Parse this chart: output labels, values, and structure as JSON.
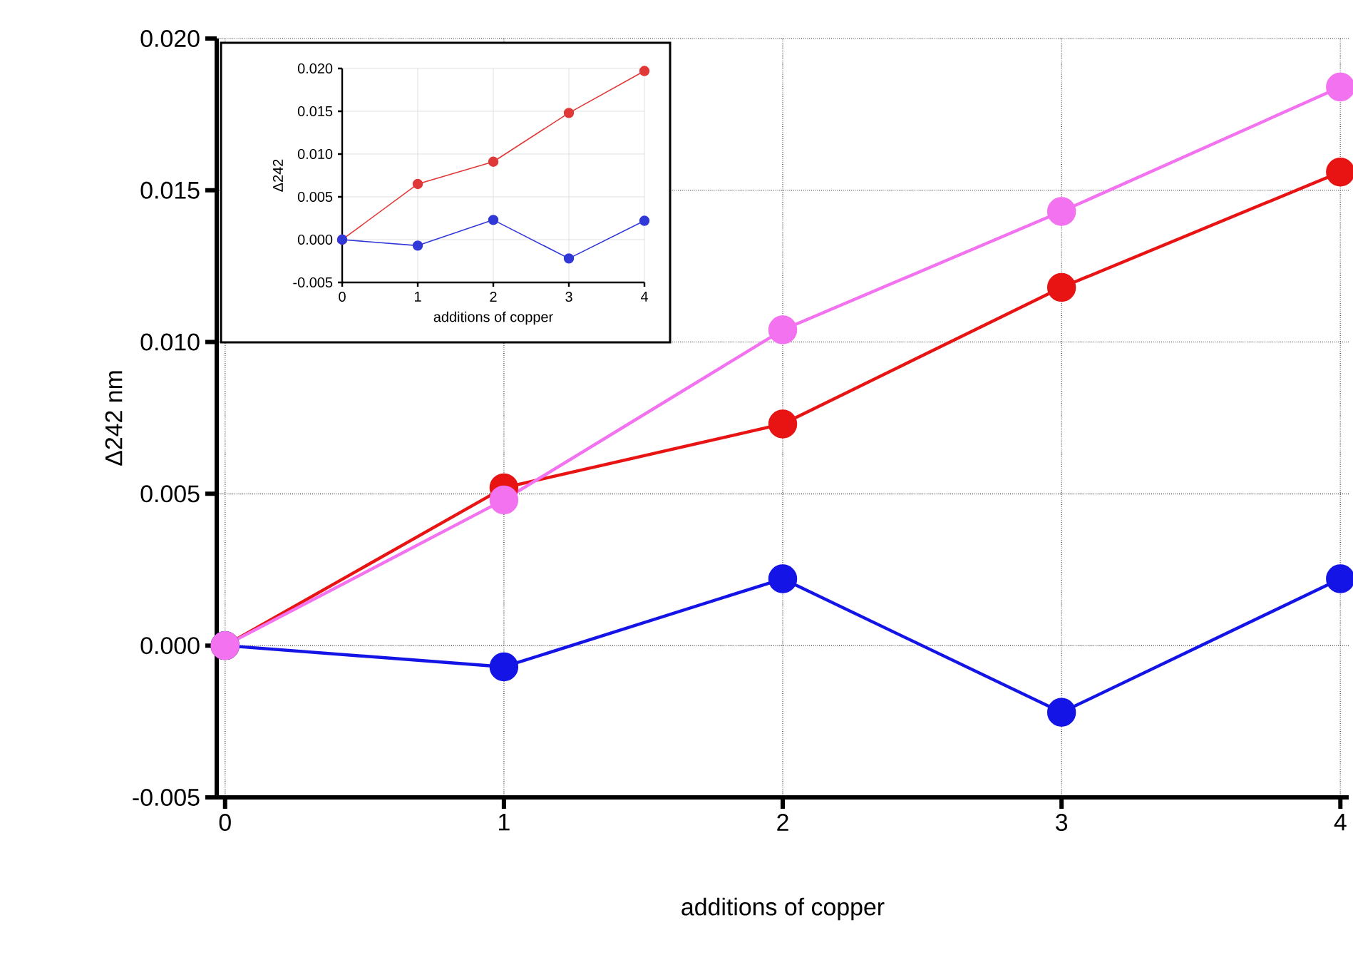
{
  "chart_data": [
    {
      "type": "line",
      "xlabel": "additions of copper",
      "ylabel": "Δ242 nm",
      "x": [
        0,
        1,
        2,
        3,
        4
      ],
      "xlim": [
        -0.03,
        4.03
      ],
      "xticks": [
        0,
        1,
        2,
        3,
        4
      ],
      "ylim": [
        -0.005,
        0.02
      ],
      "yticks": [
        {
          "value": -0.005,
          "label": "-0.005"
        },
        {
          "value": 0,
          "label": "0.000"
        },
        {
          "value": 0.005,
          "label": "0.005"
        },
        {
          "value": 0.01,
          "label": "0.010"
        },
        {
          "value": 0.015,
          "label": "0.015"
        },
        {
          "value": 0.02,
          "label": "0.020"
        }
      ],
      "grid": true,
      "marker": "circle",
      "line_style": "solid",
      "series": [
        {
          "color": "#e81414",
          "values": [
            0,
            0.0052,
            0.0073,
            0.0118,
            0.0156
          ]
        },
        {
          "color": "#1414e6",
          "values": [
            0,
            -0.0007,
            0.0022,
            -0.0022,
            0.0022
          ]
        },
        {
          "color": "#f272f0",
          "values": [
            0,
            0.0048,
            0.0104,
            0.0143,
            0.0184
          ]
        }
      ]
    },
    {
      "type": "line",
      "xlabel": "additions of copper",
      "ylabel": "Δ242",
      "x": [
        0,
        1,
        2,
        3,
        4
      ],
      "xlim": [
        0,
        4
      ],
      "xticks": [
        0,
        1,
        2,
        3,
        4
      ],
      "ylim": [
        -0.005,
        0.02
      ],
      "yticks": [
        {
          "value": -0.005,
          "label": "-0.005"
        },
        {
          "value": 0,
          "label": "0.000"
        },
        {
          "value": 0.005,
          "label": "0.005"
        },
        {
          "value": 0.01,
          "label": "0.010"
        },
        {
          "value": 0.015,
          "label": "0.015"
        },
        {
          "value": 0.02,
          "label": "0.020"
        }
      ],
      "grid": true,
      "marker": "circle",
      "line_style": "solid",
      "series": [
        {
          "color": "#e03838",
          "values": [
            0,
            0.0065,
            0.0091,
            0.0148,
            0.0197
          ]
        },
        {
          "color": "#3038d8",
          "values": [
            0,
            -0.0007,
            0.0023,
            -0.0022,
            0.0022
          ]
        }
      ]
    }
  ]
}
